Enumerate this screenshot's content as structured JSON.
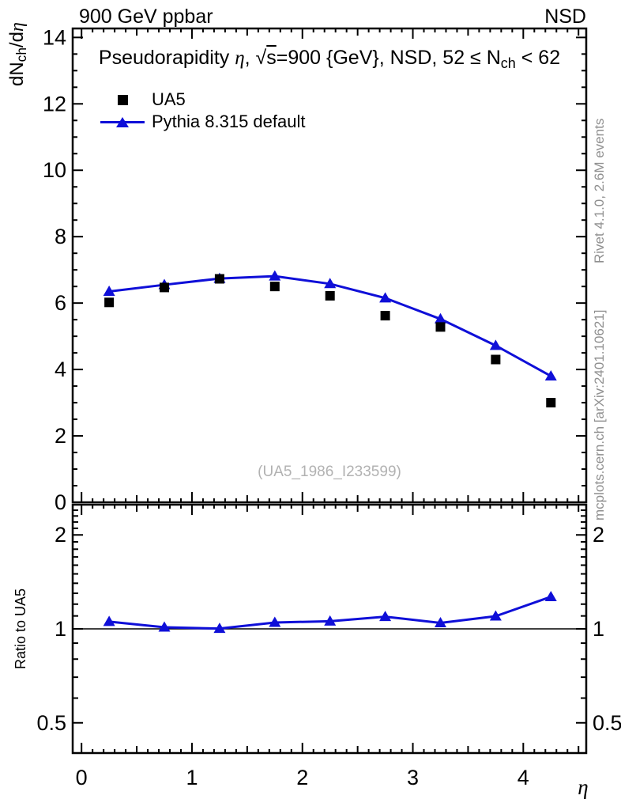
{
  "header": {
    "left": "900 GeV ppbar",
    "right": "NSD"
  },
  "side_notes": {
    "top": "Rivet 4.1.0,  2.6M events",
    "bottom": "mcplots.cern.ch [arXiv:2401.10621]"
  },
  "watermark": "(UA5_1986_I233599)",
  "colors": {
    "ua5": "#000000",
    "pythia": "#0f0fd8",
    "frame": "#000000",
    "gray_text": "#8f8f8f",
    "watermark_text": "#b2b2b2"
  },
  "chart_data": {
    "type": "line",
    "title": "Pseudorapidity η, √s=900 {GeV}, NSD, 52 ≤ Nch < 62",
    "title_parts": [
      {
        "t": "Pseudorapidity "
      },
      {
        "t": "η",
        "it": true
      },
      {
        "t": ", √"
      },
      {
        "t": "s",
        "ov": true
      },
      {
        "t": "=900 {GeV}, NSD, 52 ≤ N"
      },
      {
        "t": "ch",
        "sub": true
      },
      {
        "t": " < 62"
      }
    ],
    "xlabel": "η",
    "ylabel": "dNch/dη",
    "ylabel_parts": [
      {
        "t": "dN"
      },
      {
        "t": "ch",
        "sub": true
      },
      {
        "t": "/d"
      },
      {
        "t": "η",
        "it": true
      }
    ],
    "xlim": [
      -0.08,
      4.57
    ],
    "ylim": [
      0,
      14.27
    ],
    "xticks": [
      0,
      1,
      2,
      3,
      4
    ],
    "yticks": [
      0,
      2,
      4,
      6,
      8,
      10,
      12,
      14
    ],
    "x": [
      0.25,
      0.75,
      1.25,
      1.75,
      2.25,
      2.75,
      3.25,
      3.75,
      4.25
    ],
    "series": [
      {
        "name": "UA5",
        "marker": "square",
        "color": "#000000",
        "line": false,
        "values": [
          6.02,
          6.47,
          6.73,
          6.5,
          6.22,
          5.62,
          5.28,
          4.3,
          3.0
        ]
      },
      {
        "name": "Pythia 8.315 default",
        "marker": "triangle",
        "color": "#0f0fd8",
        "line": true,
        "values": [
          6.35,
          6.55,
          6.74,
          6.81,
          6.58,
          6.15,
          5.52,
          4.72,
          3.8
        ]
      }
    ],
    "ratio_panel": {
      "ylabel": "Ratio to UA5",
      "yscale": "log",
      "ylim": [
        0.4,
        2.5
      ],
      "yticks": [
        0.5,
        1,
        2
      ],
      "ytick_labels": [
        "0.5",
        "1",
        "2"
      ],
      "reference_line": 1,
      "series": [
        {
          "name": "Pythia 8.315 default",
          "marker": "triangle",
          "color": "#0f0fd8",
          "line": true,
          "values": [
            1.055,
            1.012,
            1.002,
            1.048,
            1.058,
            1.094,
            1.045,
            1.098,
            1.267
          ]
        }
      ]
    },
    "legend_position": "top-left",
    "grid": false
  }
}
